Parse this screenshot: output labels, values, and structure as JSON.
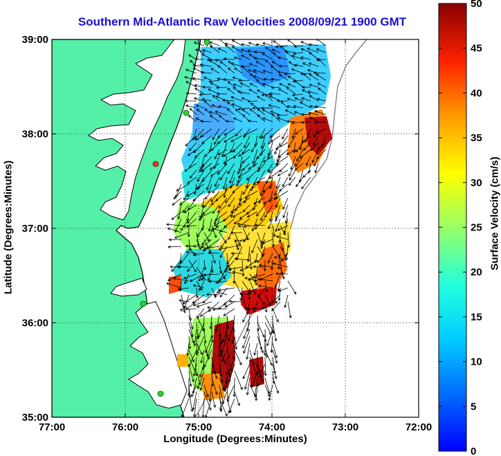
{
  "title": "Southern Mid-Atlantic Raw Velocities 2008/09/21 1900 GMT",
  "x_axis": {
    "label": "Longitude (Degrees:Minutes)",
    "ticks": [
      {
        "value": -77,
        "label": "77:00"
      },
      {
        "value": -76,
        "label": "76:00"
      },
      {
        "value": -75,
        "label": "75:00"
      },
      {
        "value": -74,
        "label": "74:00"
      },
      {
        "value": -73,
        "label": "73:00"
      },
      {
        "value": -72,
        "label": "72:00"
      }
    ]
  },
  "y_axis": {
    "label": "Latitude (Degrees:Minutes)",
    "ticks": [
      {
        "value": 39,
        "label": "39:00"
      },
      {
        "value": 38,
        "label": "38:00"
      },
      {
        "value": 37,
        "label": "37:00"
      },
      {
        "value": 36,
        "label": "36:00"
      },
      {
        "value": 35,
        "label": "35:00"
      }
    ]
  },
  "colorbar": {
    "label": "Surface Velocity (cm/s)",
    "min": 0,
    "max": 50,
    "ticks": [
      "0",
      "5",
      "10",
      "15",
      "20",
      "25",
      "30",
      "35",
      "40",
      "45",
      "50"
    ]
  },
  "colors": {
    "land": "#55f0a8",
    "coast_line": "#000000",
    "title": "#1a10cc",
    "hf_radar_site": "#22dd22",
    "hf_radar_site_inactive": "#ee3322"
  }
}
